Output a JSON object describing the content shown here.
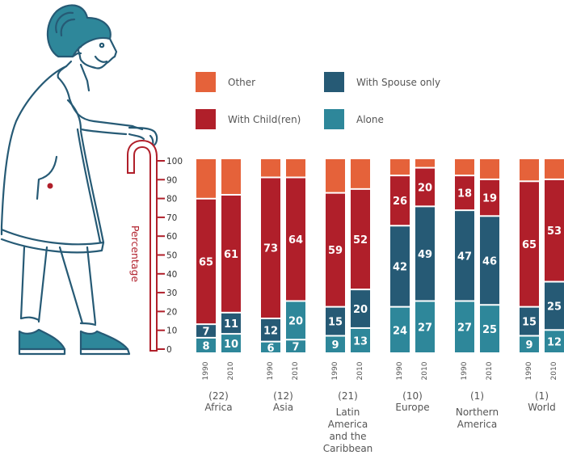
{
  "chart_data": {
    "type": "bar",
    "stacked": true,
    "ylabel": "Percentage",
    "ylim": [
      0,
      100
    ],
    "yticks": [
      0,
      10,
      20,
      30,
      40,
      50,
      60,
      70,
      80,
      90,
      100
    ],
    "years": [
      "1990",
      "2010"
    ],
    "legend": [
      {
        "key": "other",
        "label": "Other",
        "color": "#e5623a"
      },
      {
        "key": "spouse",
        "label": "With Spouse only",
        "color": "#265a75"
      },
      {
        "key": "child",
        "label": "With Child(ren)",
        "color": "#b01f2a"
      },
      {
        "key": "alone",
        "label": "Alone",
        "color": "#2e879a"
      }
    ],
    "groups": [
      {
        "count": "(22)",
        "name_lines": [
          "Africa"
        ],
        "bars": [
          {
            "year": "1990",
            "alone": 8,
            "spouse": 7,
            "child": 65,
            "other": 20
          },
          {
            "year": "2010",
            "alone": 10,
            "spouse": 11,
            "child": 61,
            "other": 18
          }
        ]
      },
      {
        "count": "(12)",
        "name_lines": [
          "Asia"
        ],
        "bars": [
          {
            "year": "1990",
            "alone": 6,
            "spouse": 12,
            "child": 73,
            "other": 9
          },
          {
            "year": "2010",
            "alone": 7,
            "spouse": 20,
            "child": 64,
            "other": 9,
            "spouse_color_override": "#2e879a"
          }
        ]
      },
      {
        "count": "(21)",
        "name_lines": [
          "Latin",
          "America",
          "and the",
          "Caribbean"
        ],
        "bars": [
          {
            "year": "1990",
            "alone": 9,
            "spouse": 15,
            "child": 59,
            "other": 17
          },
          {
            "year": "2010",
            "alone": 13,
            "spouse": 20,
            "child": 52,
            "other": 15
          }
        ]
      },
      {
        "count": "(10)",
        "name_lines": [
          "Europe"
        ],
        "bars": [
          {
            "year": "1990",
            "alone": 24,
            "spouse": 42,
            "child": 26,
            "other": 8
          },
          {
            "year": "2010",
            "alone": 27,
            "spouse": 49,
            "child": 20,
            "other": 4
          }
        ]
      },
      {
        "count": "(1)",
        "name_lines": [
          "Northern",
          "America"
        ],
        "bars": [
          {
            "year": "1990",
            "alone": 27,
            "spouse": 47,
            "child": 18,
            "other": 8
          },
          {
            "year": "2010",
            "alone": 25,
            "spouse": 46,
            "child": 19,
            "other": 10
          }
        ]
      },
      {
        "count": "(1)",
        "name_lines": [
          "World"
        ],
        "bars": [
          {
            "year": "1990",
            "alone": 9,
            "spouse": 15,
            "child": 65,
            "other": 11
          },
          {
            "year": "2010",
            "alone": 12,
            "spouse": 25,
            "child": 53,
            "other": 10
          }
        ]
      }
    ]
  },
  "colors": {
    "illustration_stroke": "#265a75",
    "illustration_fill": "#2e879a",
    "cane": "#b01f2a",
    "axis_text": "#333333",
    "label_text": "#555555"
  }
}
